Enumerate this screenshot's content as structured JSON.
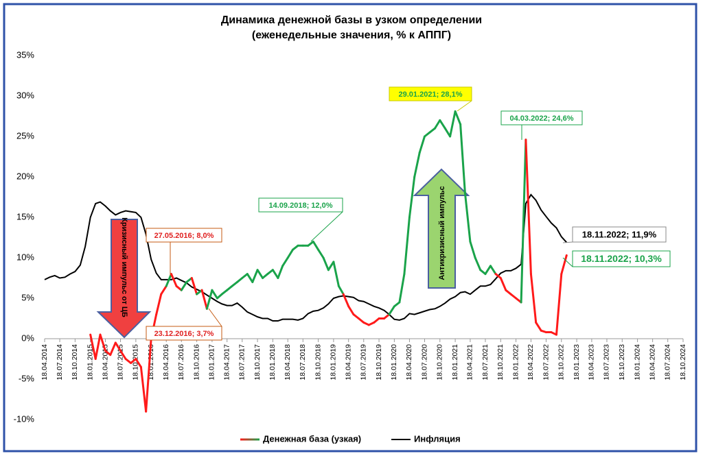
{
  "chart_data": {
    "type": "line",
    "title": "Динамика денежной базы в узком определении",
    "subtitle": "(еженедельные значения, % к АППГ)",
    "x": [
      "18.04.2014",
      "18.05.2014",
      "18.06.2014",
      "18.07.2014",
      "18.08.2014",
      "18.09.2014",
      "18.10.2014",
      "18.11.2014",
      "18.12.2014",
      "18.01.2015",
      "18.02.2015",
      "18.03.2015",
      "18.04.2015",
      "18.05.2015",
      "18.06.2015",
      "18.07.2015",
      "18.08.2015",
      "18.09.2015",
      "18.10.2015",
      "18.11.2015",
      "18.12.2015",
      "18.01.2016",
      "18.02.2016",
      "18.03.2016",
      "18.04.2016",
      "18.05.2016",
      "18.06.2016",
      "18.07.2016",
      "18.08.2016",
      "18.09.2016",
      "18.10.2016",
      "18.11.2016",
      "18.12.2016",
      "18.01.2017",
      "18.02.2017",
      "18.03.2017",
      "18.04.2017",
      "18.05.2017",
      "18.06.2017",
      "18.07.2017",
      "18.08.2017",
      "18.09.2017",
      "18.10.2017",
      "18.11.2017",
      "18.12.2017",
      "18.01.2018",
      "18.02.2018",
      "18.03.2018",
      "18.04.2018",
      "18.05.2018",
      "18.06.2018",
      "18.07.2018",
      "18.08.2018",
      "18.09.2018",
      "18.10.2018",
      "18.11.2018",
      "18.12.2018",
      "18.01.2019",
      "18.02.2019",
      "18.03.2019",
      "18.04.2019",
      "18.05.2019",
      "18.06.2019",
      "18.07.2019",
      "18.08.2019",
      "18.09.2019",
      "18.10.2019",
      "18.11.2019",
      "18.12.2019",
      "18.01.2020",
      "18.02.2020",
      "18.03.2020",
      "18.04.2020",
      "18.05.2020",
      "18.06.2020",
      "18.07.2020",
      "18.08.2020",
      "18.09.2020",
      "18.10.2020",
      "18.11.2020",
      "18.12.2020",
      "18.01.2021",
      "18.02.2021",
      "18.03.2021",
      "18.04.2021",
      "18.05.2021",
      "18.06.2021",
      "18.07.2021",
      "18.08.2021",
      "18.09.2021",
      "18.10.2021",
      "18.11.2021",
      "18.12.2021",
      "18.01.2022",
      "18.02.2022",
      "18.03.2022",
      "18.04.2022",
      "18.05.2022",
      "18.06.2022",
      "18.07.2022",
      "18.08.2022",
      "18.09.2022",
      "18.10.2022",
      "18.11.2022"
    ],
    "series": [
      {
        "name": "Денежная база (узкая)",
        "color": "#ff1a1a",
        "color_above": "#1aa34a",
        "values": [
          null,
          null,
          null,
          null,
          null,
          null,
          null,
          null,
          null,
          0.5,
          -2.5,
          0.5,
          -1.5,
          -2,
          -0.5,
          -1.5,
          -2.5,
          -3,
          -2.5,
          -3.5,
          -9,
          0,
          3,
          5.5,
          6.5,
          8.0,
          6.5,
          6,
          7,
          7.5,
          5.5,
          6,
          3.7,
          6,
          5,
          5.5,
          6,
          6.5,
          7,
          7.5,
          8,
          7,
          8.5,
          7.5,
          8,
          8.5,
          7.5,
          9,
          10,
          11,
          11.5,
          11.5,
          11.5,
          12.0,
          11,
          10,
          8.5,
          9.5,
          6.5,
          5.5,
          4,
          3,
          2.5,
          2,
          1.7,
          2,
          2.5,
          2.5,
          3,
          4,
          4.5,
          8,
          15,
          20,
          23,
          25,
          25.5,
          26,
          27,
          26,
          25,
          28.1,
          26.5,
          18,
          12,
          10,
          8.5,
          8,
          9,
          8,
          7.5,
          6,
          5.5,
          5,
          4.5,
          24.6,
          8,
          2,
          1,
          0.8,
          0.8,
          0.5,
          8,
          10.3
        ]
      },
      {
        "name": "Инфляция",
        "color": "#000000",
        "values": [
          7.3,
          7.6,
          7.8,
          7.5,
          7.6,
          8.0,
          8.3,
          9.1,
          11.4,
          15.0,
          16.7,
          16.9,
          16.4,
          15.8,
          15.3,
          15.6,
          15.8,
          15.7,
          15.6,
          15.0,
          12.9,
          9.8,
          8.1,
          7.3,
          7.3,
          7.3,
          7.5,
          7.2,
          6.9,
          6.4,
          6.1,
          5.8,
          5.4,
          5.0,
          4.6,
          4.3,
          4.1,
          4.1,
          4.4,
          3.9,
          3.3,
          3.0,
          2.7,
          2.5,
          2.5,
          2.2,
          2.2,
          2.4,
          2.4,
          2.4,
          2.3,
          2.5,
          3.1,
          3.4,
          3.5,
          3.8,
          4.3,
          5.0,
          5.2,
          5.3,
          5.2,
          5.1,
          4.7,
          4.6,
          4.3,
          4.0,
          3.8,
          3.5,
          3.0,
          2.4,
          2.3,
          2.5,
          3.1,
          3.0,
          3.2,
          3.4,
          3.6,
          3.7,
          4.0,
          4.4,
          4.9,
          5.2,
          5.7,
          5.8,
          5.5,
          6.0,
          6.5,
          6.5,
          6.7,
          7.4,
          8.1,
          8.4,
          8.4,
          8.7,
          9.2,
          16.7,
          17.8,
          17.1,
          15.9,
          15.1,
          14.3,
          13.7,
          12.6,
          11.9
        ]
      }
    ],
    "xlim": [
      "18.04.2014",
      "18.10.2024"
    ],
    "xticks": [
      "18.04.2014",
      "18.07.2014",
      "18.10.2014",
      "18.01.2015",
      "18.04.2015",
      "18.07.2015",
      "18.10.2015",
      "18.01.2016",
      "18.04.2016",
      "18.07.2016",
      "18.10.2016",
      "18.01.2017",
      "18.04.2017",
      "18.07.2017",
      "18.10.2017",
      "18.01.2018",
      "18.04.2018",
      "18.07.2018",
      "18.10.2018",
      "18.01.2019",
      "18.04.2019",
      "18.07.2019",
      "18.10.2019",
      "18.01.2020",
      "18.04.2020",
      "18.07.2020",
      "18.10.2020",
      "18.01.2021",
      "18.04.2021",
      "18.07.2021",
      "18.10.2021",
      "18.01.2022",
      "18.04.2022",
      "18.07.2022",
      "18.10.2022",
      "18.01.2023",
      "18.04.2023",
      "18.07.2023",
      "18.10.2023",
      "18.01.2024",
      "18.04.2024",
      "18.07.2024",
      "18.10.2024"
    ],
    "ylim": [
      -10,
      35
    ],
    "yticks": [
      {
        "value": -10,
        "label": "-10%"
      },
      {
        "value": -5,
        "label": "-5%"
      },
      {
        "value": 0,
        "label": "0%"
      },
      {
        "value": 5,
        "label": "5%"
      },
      {
        "value": 10,
        "label": "10%"
      },
      {
        "value": 15,
        "label": "15%"
      },
      {
        "value": 20,
        "label": "20%"
      },
      {
        "value": 25,
        "label": "25%"
      },
      {
        "value": 30,
        "label": "30%"
      },
      {
        "value": 35,
        "label": "35%"
      }
    ],
    "legend": "bottom",
    "annotations": [
      "27.05.2016; 8,0%",
      "23.12.2016; 3,7%",
      "14.09.2018; 12,0%",
      "29.01.2021; 28,1%",
      "04.03.2022; 24,6%",
      "18.11.2022; 11,9%",
      "18.11.2022; 10,3%"
    ],
    "arrow_labels": [
      "Кризисный импульс от ЦБ",
      "Антикризисный импульс"
    ]
  }
}
